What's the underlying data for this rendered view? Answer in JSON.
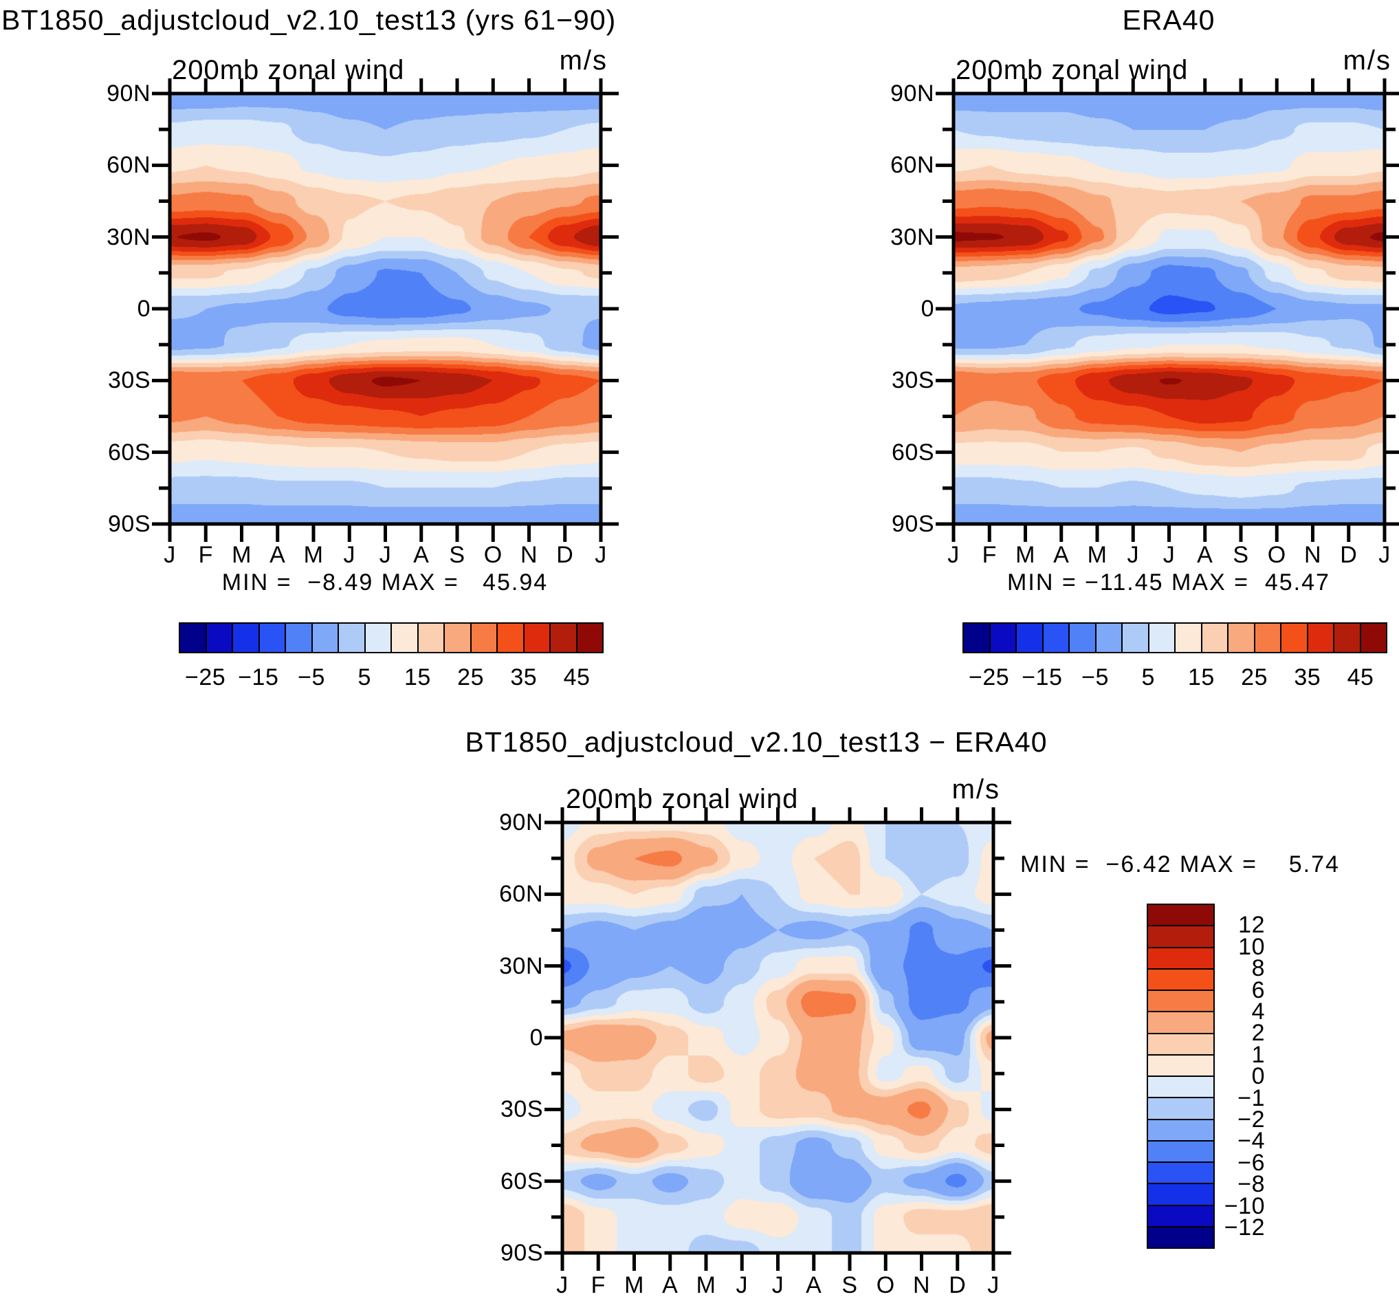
{
  "page": {
    "background": "#ffffff",
    "text_color": "#000000"
  },
  "axes": {
    "lat_labels": [
      "90N",
      "60N",
      "30N",
      "0",
      "30S",
      "60S",
      "90S"
    ],
    "month_labels": [
      "J",
      "F",
      "M",
      "A",
      "M",
      "J",
      "J",
      "A",
      "S",
      "O",
      "N",
      "D",
      "J"
    ]
  },
  "colorbar": {
    "wind_labels": [
      "−25",
      "−15",
      "−5",
      "5",
      "15",
      "25",
      "35",
      "45"
    ],
    "diff_labels": [
      "12",
      "10",
      "8",
      "6",
      "4",
      "2",
      "1",
      "0",
      "−1",
      "−2",
      "−4",
      "−6",
      "−8",
      "−10",
      "−12"
    ]
  },
  "chart_data": {
    "type": "heatmap",
    "subtype": "filled-contour lat-month sections, 3 panels",
    "month_labels": [
      "J",
      "F",
      "M",
      "A",
      "M",
      "J",
      "J",
      "A",
      "S",
      "O",
      "N",
      "D",
      "J"
    ],
    "latitudes": [
      90,
      75,
      60,
      45,
      30,
      15,
      0,
      -15,
      -30,
      -45,
      -60,
      -75,
      -90
    ],
    "lat_tick_labels": [
      "90N",
      "60N",
      "30N",
      "0",
      "30S",
      "60S",
      "90S"
    ],
    "palette": [
      "#00008B",
      "#0A0AC3",
      "#1430E8",
      "#2A53F5",
      "#5181F7",
      "#7FA8F8",
      "#AECBF8",
      "#DCEAFA",
      "#FCE9D8",
      "#FACFB2",
      "#F9A97E",
      "#F77B45",
      "#F4511A",
      "#DE2B0D",
      "#B21D0C",
      "#8F0A06"
    ],
    "wind_levels": [
      -25,
      -20,
      -15,
      -10,
      -5,
      0,
      5,
      10,
      15,
      20,
      25,
      30,
      35,
      40,
      45
    ],
    "diff_levels": [
      -12,
      -10,
      -8,
      -6,
      -4,
      -2,
      -1,
      0,
      1,
      2,
      4,
      6,
      8,
      10,
      12
    ],
    "panels": [
      {
        "id": "model",
        "title": "BT1850_adjustcloud_v2.10_test13 (yrs 61−90)",
        "subtitle": "200mb zonal wind",
        "units": "m/s",
        "stats_text": "MIN =  −8.49 MAX =   45.94",
        "min": -8.49,
        "max": 45.94,
        "scale": "wind",
        "values": [
          [
            -4,
            -4,
            -3,
            -3,
            -3,
            -4,
            -5,
            -4,
            -4,
            -4,
            -4,
            -4,
            -4
          ],
          [
            6,
            7,
            7,
            6,
            3,
            1,
            0,
            1,
            2,
            3,
            4,
            5,
            6
          ],
          [
            14,
            15,
            14,
            12,
            9,
            7,
            6,
            7,
            9,
            10,
            11,
            12,
            14
          ],
          [
            26,
            27,
            26,
            22,
            18,
            16,
            15,
            16,
            18,
            20,
            22,
            24,
            26
          ],
          [
            44.9,
            45.9,
            43.5,
            34,
            24,
            14,
            10,
            10,
            14,
            22,
            30,
            39,
            44.9
          ],
          [
            16,
            16,
            14,
            10,
            4,
            -2,
            -5.5,
            -5,
            0,
            6,
            10,
            14,
            16
          ],
          [
            0.5,
            0,
            -1,
            -2,
            -4,
            -7,
            -8.4,
            -8,
            -6,
            -3,
            -1,
            0.5,
            0.5
          ],
          [
            -2,
            -1,
            1,
            4,
            8,
            10,
            11,
            12,
            12,
            10,
            7,
            2,
            -2
          ],
          [
            30,
            29,
            30,
            33,
            38,
            43,
            45.9,
            45,
            43,
            40,
            36,
            32,
            30
          ],
          [
            26,
            25,
            27,
            30,
            32,
            33,
            34,
            35,
            34,
            33,
            30,
            28,
            26
          ],
          [
            12,
            11,
            12,
            13,
            14,
            14,
            15,
            16,
            17,
            17,
            15,
            13,
            12
          ],
          [
            3,
            3,
            3,
            4,
            4,
            4,
            5,
            5,
            5,
            5,
            4,
            3,
            3
          ],
          [
            -4,
            -4,
            -4,
            -4,
            -4,
            -4,
            -4,
            -4,
            -4,
            -4,
            -4,
            -4,
            -4
          ]
        ]
      },
      {
        "id": "era40",
        "title": "ERA40",
        "subtitle": "200mb zonal wind",
        "units": "m/s",
        "stats_text": "MIN = −11.45 MAX =  45.47",
        "min": -11.45,
        "max": 45.47,
        "scale": "wind",
        "values": [
          [
            -4,
            -4,
            -3,
            -2,
            -3,
            -3,
            -4,
            -4,
            -4,
            -3,
            -3,
            -3,
            -4
          ],
          [
            5,
            4,
            3,
            2,
            1,
            0,
            0,
            0,
            1,
            4,
            6,
            6,
            5
          ],
          [
            14,
            15,
            13,
            12,
            10,
            9,
            7,
            7,
            8,
            9,
            12,
            12,
            14
          ],
          [
            28,
            29,
            28,
            25,
            21,
            18,
            17,
            18,
            20,
            22,
            26,
            26,
            28
          ],
          [
            46,
            45.5,
            44,
            36,
            26,
            15,
            9,
            9,
            13,
            24,
            34,
            43,
            46
          ],
          [
            18,
            17,
            15,
            11,
            4,
            -3,
            -7,
            -6,
            -1,
            7,
            14,
            17,
            18
          ],
          [
            -1,
            -2,
            -3,
            -4,
            -6,
            -9,
            -11.4,
            -10.5,
            -8,
            -5,
            -2,
            -1,
            -1
          ],
          [
            -1,
            -1,
            0,
            4,
            7,
            9,
            10,
            10,
            10,
            9,
            6,
            4,
            -1
          ],
          [
            30,
            28,
            29,
            33,
            39,
            43,
            45.4,
            44,
            41,
            37,
            33,
            31,
            30
          ],
          [
            25,
            23,
            24,
            29,
            32,
            33,
            35,
            37,
            36,
            32,
            28,
            27,
            25
          ],
          [
            13,
            13,
            13,
            15,
            15,
            14,
            16,
            19,
            20,
            18,
            17,
            17,
            13
          ],
          [
            3,
            3,
            4,
            5,
            5,
            4,
            5,
            6,
            7,
            6,
            4,
            3,
            3
          ],
          [
            -4,
            -4,
            -4,
            -4,
            -4,
            -4,
            -4,
            -4,
            -4,
            -4,
            -4,
            -4,
            -4
          ]
        ]
      },
      {
        "id": "diff",
        "title": "BT1850_adjustcloud_v2.10_test13 − ERA40",
        "subtitle": "200mb zonal wind",
        "units": "m/s",
        "stats_text": "MIN =  −6.42 MAX =    5.74",
        "min": -6.42,
        "max": 5.74,
        "scale": "diff",
        "values": [
          [
            -0.5,
            0.5,
            0.5,
            0.5,
            0.5,
            -0.5,
            -1,
            -0.5,
            0.5,
            -1,
            -1.5,
            -1,
            -0.5
          ],
          [
            0.5,
            2.5,
            4,
            4.5,
            2.5,
            0.5,
            -0.5,
            1,
            1.5,
            -1,
            -2,
            -1.5,
            0.5
          ],
          [
            0.5,
            0.5,
            1,
            0.5,
            -1.5,
            -2,
            -1,
            0.5,
            1,
            1,
            -1,
            -0.5,
            0.5
          ],
          [
            -2,
            -2.5,
            -2,
            -2.5,
            -3.5,
            -2.5,
            -2,
            -2.5,
            -2,
            -2.5,
            -4.5,
            -2.5,
            -2
          ],
          [
            -6.4,
            -3.5,
            -2.5,
            -2,
            -2.5,
            -1.5,
            -0.5,
            0.5,
            0.5,
            -3.5,
            -4.5,
            -4.5,
            -6.4
          ],
          [
            -2.5,
            -1.5,
            -0.5,
            -0.5,
            -1.5,
            -0.5,
            1.5,
            5,
            4.5,
            -1.5,
            -5,
            -4.5,
            -2.5
          ],
          [
            2.5,
            3.5,
            3,
            1.5,
            0.5,
            -0.5,
            0.5,
            2.5,
            2.5,
            0.5,
            -3,
            -2.5,
            2.5
          ],
          [
            0.5,
            1.5,
            1.5,
            0.5,
            1.5,
            0.5,
            1.5,
            2.5,
            2.5,
            -0.5,
            0.5,
            -1.5,
            0.5
          ],
          [
            -0.5,
            0.5,
            0.5,
            -0.5,
            -1.5,
            0.5,
            1.5,
            1.5,
            2.5,
            3,
            4.5,
            1.5,
            -0.5
          ],
          [
            1.5,
            2.5,
            3.5,
            1.5,
            0.5,
            -0.5,
            -1.5,
            -2.5,
            -1.5,
            0.5,
            1.5,
            0.5,
            1.5
          ],
          [
            -1.5,
            -2.5,
            -1.5,
            -2.5,
            -1.5,
            -0.5,
            -1.5,
            -3.5,
            -3,
            -1.5,
            -2.5,
            -4.5,
            -1.5
          ],
          [
            2,
            0.5,
            -0.5,
            -0.5,
            -0.5,
            0.5,
            0.8,
            -0.5,
            -1.5,
            0.5,
            1.5,
            1.5,
            2
          ],
          [
            2,
            0.5,
            -0.5,
            -0.5,
            -1.5,
            -1.5,
            -0.5,
            -0.5,
            -1.5,
            0.5,
            0.5,
            0.5,
            2
          ]
        ]
      }
    ]
  }
}
